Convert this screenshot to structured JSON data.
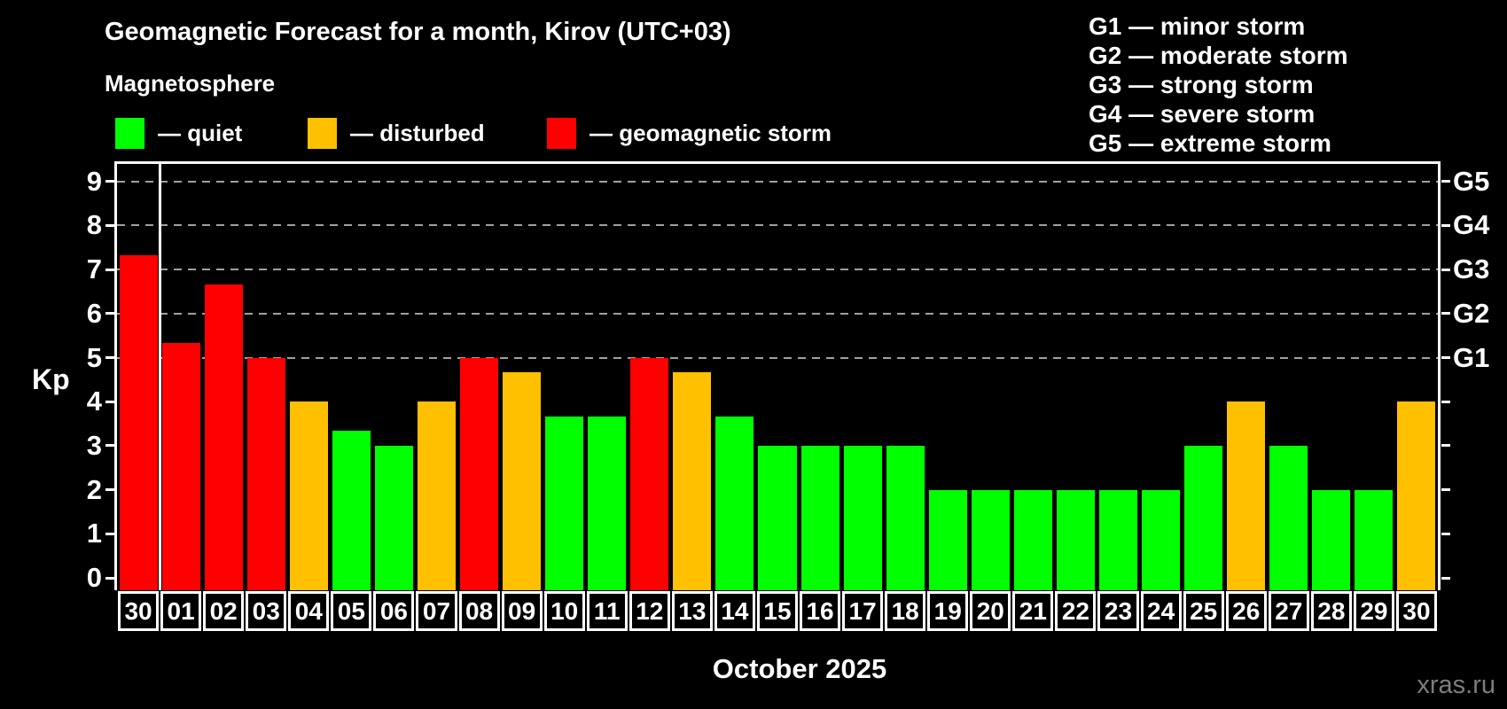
{
  "header": {
    "title": "Geomagnetic Forecast for a month, Kirov (UTC+03)",
    "subtitle": "Magnetosphere"
  },
  "legend": {
    "items": [
      {
        "key": "quiet",
        "label": "— quiet",
        "color": "#00ff00"
      },
      {
        "key": "disturbed",
        "label": "— disturbed",
        "color": "#ffc000"
      },
      {
        "key": "storm",
        "label": "— geomagnetic storm",
        "color": "#ff0000"
      }
    ]
  },
  "storm_scale": {
    "items": [
      "G1 — minor storm",
      "G2 — moderate storm",
      "G3 — strong storm",
      "G4 — severe storm",
      "G5 — extreme storm"
    ]
  },
  "chart_data": {
    "type": "bar",
    "title": "Geomagnetic Forecast for a month, Kirov (UTC+03)",
    "ylabel": "Kp",
    "xlabel": "October 2025",
    "ylim": [
      0,
      9.4
    ],
    "yticks": [
      0,
      1,
      2,
      3,
      4,
      5,
      6,
      7,
      8,
      9
    ],
    "gridlines_at": [
      5,
      6,
      7,
      8,
      9
    ],
    "grid": "dashed horizontal at storm levels only",
    "right_axis": [
      {
        "label": "G1",
        "kp": 5
      },
      {
        "label": "G2",
        "kp": 6
      },
      {
        "label": "G3",
        "kp": 7
      },
      {
        "label": "G4",
        "kp": 8
      },
      {
        "label": "G5",
        "kp": 9
      }
    ],
    "categories": [
      "30",
      "01",
      "02",
      "03",
      "04",
      "05",
      "06",
      "07",
      "08",
      "09",
      "10",
      "11",
      "12",
      "13",
      "14",
      "15",
      "16",
      "17",
      "18",
      "19",
      "20",
      "21",
      "22",
      "23",
      "24",
      "25",
      "26",
      "27",
      "28",
      "29",
      "30"
    ],
    "values": [
      7.33,
      5.33,
      6.67,
      5.0,
      4.0,
      3.33,
      3.0,
      4.0,
      5.0,
      4.67,
      3.67,
      3.67,
      5.0,
      4.67,
      3.67,
      3.0,
      3.0,
      3.0,
      3.0,
      2.0,
      2.0,
      2.0,
      2.0,
      2.0,
      2.0,
      3.0,
      4.0,
      3.0,
      2.0,
      2.0,
      4.0
    ],
    "statuses": [
      "storm",
      "storm",
      "storm",
      "storm",
      "disturbed",
      "quiet",
      "quiet",
      "disturbed",
      "storm",
      "disturbed",
      "quiet",
      "quiet",
      "storm",
      "disturbed",
      "quiet",
      "quiet",
      "quiet",
      "quiet",
      "quiet",
      "quiet",
      "quiet",
      "quiet",
      "quiet",
      "quiet",
      "quiet",
      "quiet",
      "disturbed",
      "quiet",
      "quiet",
      "quiet",
      "disturbed"
    ],
    "palette": {
      "quiet": "#00ff00",
      "disturbed": "#ffc000",
      "storm": "#ff0000"
    },
    "separator_after_category_index": 0,
    "legend_position": "top-left"
  },
  "footer": {
    "watermark": "xras.ru"
  }
}
